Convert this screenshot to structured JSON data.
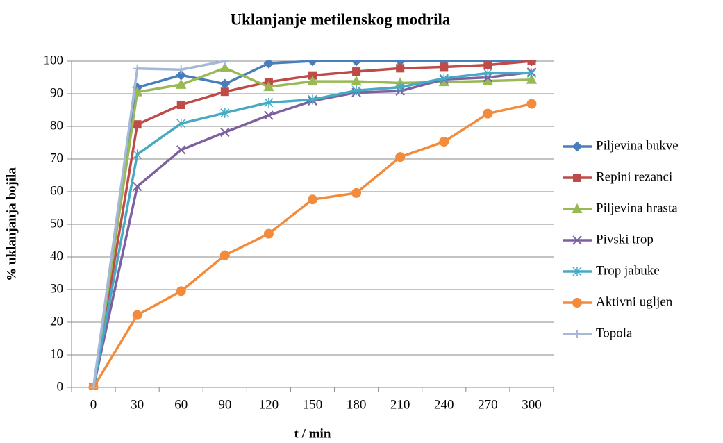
{
  "chart_data": {
    "type": "line",
    "title": "Uklanjanje metilenskog modrila",
    "x_label": "t / min",
    "y_label": "%  uklanjanja bojila",
    "categories": [
      "0",
      "30",
      "60",
      "90",
      "120",
      "150",
      "180",
      "210",
      "240",
      "270",
      "300"
    ],
    "ylim": [
      0,
      100
    ],
    "yticks": [
      0,
      10,
      20,
      30,
      40,
      50,
      60,
      70,
      80,
      90,
      100
    ],
    "grid": true,
    "legend": "right",
    "series": [
      {
        "name": "Piljevina bukve",
        "color": "#4a7ebb",
        "marker": "diamond",
        "values": [
          0,
          91.9,
          95.7,
          93,
          99.3,
          100,
          100,
          100,
          100,
          100,
          100
        ]
      },
      {
        "name": "Repini rezanci",
        "color": "#be4b48",
        "marker": "square",
        "values": [
          0,
          80.6,
          86.6,
          90.6,
          93.6,
          95.6,
          96.8,
          97.8,
          98.2,
          98.8,
          100
        ]
      },
      {
        "name": "Piljevina hrasta",
        "color": "#98b954",
        "marker": "triangle",
        "values": [
          0,
          90.5,
          92.8,
          97.9,
          92.1,
          93.8,
          93.8,
          93.3,
          93.6,
          93.9,
          94.3
        ]
      },
      {
        "name": "Pivski trop",
        "color": "#7d60a0",
        "marker": "x",
        "values": [
          0,
          61.6,
          72.8,
          78.2,
          83.4,
          87.8,
          90.4,
          90.8,
          94.4,
          95,
          96.6
        ]
      },
      {
        "name": "Trop jabuke",
        "color": "#46aac5",
        "marker": "asterisk",
        "values": [
          0,
          71.4,
          80.9,
          84.1,
          87.3,
          88.2,
          91,
          92,
          94.7,
          96.3,
          96.3
        ]
      },
      {
        "name": "Aktivni ugljen",
        "color": "#f38b3c",
        "marker": "circle",
        "values": [
          0,
          22.2,
          29.5,
          40.5,
          47.1,
          57.6,
          59.6,
          70.6,
          75.3,
          83.9,
          86.9
        ]
      },
      {
        "name": "Topola",
        "color": "#a5b8d8",
        "marker": "plus",
        "values": [
          0,
          97.7,
          97.4,
          100,
          null,
          null,
          null,
          null,
          null,
          null,
          null
        ]
      }
    ]
  }
}
